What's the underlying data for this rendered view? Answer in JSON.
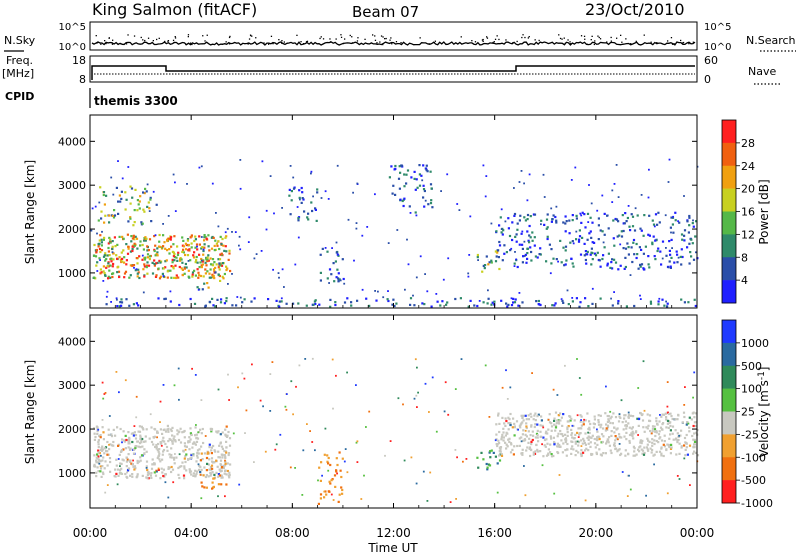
{
  "header": {
    "station": "King Salmon (fitACF)",
    "beam": "Beam 07",
    "date": "23/Oct/2010"
  },
  "top_panels": {
    "nsky_label": "N.Sky",
    "nsky_ticks": [
      "10^5",
      "10^0"
    ],
    "nsearch_label": "N.Search",
    "nsearch_ticks": [
      "10^5",
      "10^0"
    ],
    "freq_label": "Freq.",
    "freq_unit": "[MHz]",
    "freq_ticks": [
      "18",
      "8"
    ],
    "nave_label": "Nave",
    "nave_ticks": [
      "60",
      "0"
    ],
    "cpid_label": "CPID",
    "cpid_value": "themis 3300"
  },
  "x_axis": {
    "label": "Time UT",
    "ticks": [
      "00:00",
      "04:00",
      "08:00",
      "12:00",
      "16:00",
      "20:00",
      "00:00"
    ]
  },
  "chart_data": [
    {
      "type": "heatmap",
      "name": "power",
      "ylabel": "Slant Range [km]",
      "yticks": [
        "1000",
        "2000",
        "3000",
        "4000"
      ],
      "ylim": [
        200,
        4600
      ],
      "xlim_hours": [
        0,
        24
      ],
      "colorbar": {
        "label": "Power [dB]",
        "ticks": [
          "4",
          "8",
          "12",
          "16",
          "20",
          "24",
          "28"
        ],
        "colors": [
          "#1f1fff",
          "#2a4ea8",
          "#2f8a6a",
          "#55b848",
          "#c8d020",
          "#f0a010",
          "#f06010",
          "#ff2020"
        ]
      },
      "regions": [
        {
          "t": [
            0.1,
            5.5
          ],
          "r": [
            900,
            1900
          ],
          "level": "high",
          "note": ""
        },
        {
          "t": [
            0.3,
            2.6
          ],
          "r": [
            2100,
            3000
          ],
          "level": "medium"
        },
        {
          "t": [
            4.2,
            5.4
          ],
          "r": [
            650,
            1250
          ],
          "level": "medium"
        },
        {
          "t": [
            7.8,
            9.0
          ],
          "r": [
            2200,
            3000
          ],
          "level": "low"
        },
        {
          "t": [
            9.0,
            10.0
          ],
          "r": [
            800,
            1600
          ],
          "level": "low"
        },
        {
          "t": [
            11.8,
            13.5
          ],
          "r": [
            2400,
            3500
          ],
          "level": "low"
        },
        {
          "t": [
            15.2,
            16.2
          ],
          "r": [
            1000,
            1600
          ],
          "level": "medium"
        },
        {
          "t": [
            16.0,
            24.0
          ],
          "r": [
            1100,
            2400
          ],
          "level": "low"
        },
        {
          "t": [
            0.0,
            24.0
          ],
          "r": [
            250,
            450
          ],
          "level": "low"
        }
      ]
    },
    {
      "type": "heatmap",
      "name": "velocity",
      "ylabel": "Slant Range [km]",
      "yticks": [
        "1000",
        "2000",
        "3000",
        "4000"
      ],
      "ylim": [
        200,
        4600
      ],
      "xlim_hours": [
        0,
        24
      ],
      "colorbar": {
        "label": "Velocity [m s^-1]",
        "ticks": [
          "1000",
          "500",
          "100",
          "25",
          "-25",
          "-100",
          "-500",
          "-1000"
        ],
        "colors": [
          "#1f3aff",
          "#2a6aa0",
          "#2f8a5a",
          "#55c040",
          "#c8c8c0",
          "#f0a030",
          "#f07010",
          "#ff2020"
        ]
      },
      "regions": [
        {
          "t": [
            0.1,
            5.5
          ],
          "r": [
            900,
            2100
          ],
          "level": "ground"
        },
        {
          "t": [
            4.2,
            5.4
          ],
          "r": [
            650,
            1500
          ],
          "level": "negative"
        },
        {
          "t": [
            9.0,
            10.0
          ],
          "r": [
            300,
            1500
          ],
          "level": "negative"
        },
        {
          "t": [
            15.2,
            16.2
          ],
          "r": [
            1000,
            1600
          ],
          "level": "positive"
        },
        {
          "t": [
            16.0,
            24.0
          ],
          "r": [
            1400,
            2400
          ],
          "level": "ground"
        }
      ]
    }
  ],
  "colors": {
    "axis": "#000000"
  }
}
